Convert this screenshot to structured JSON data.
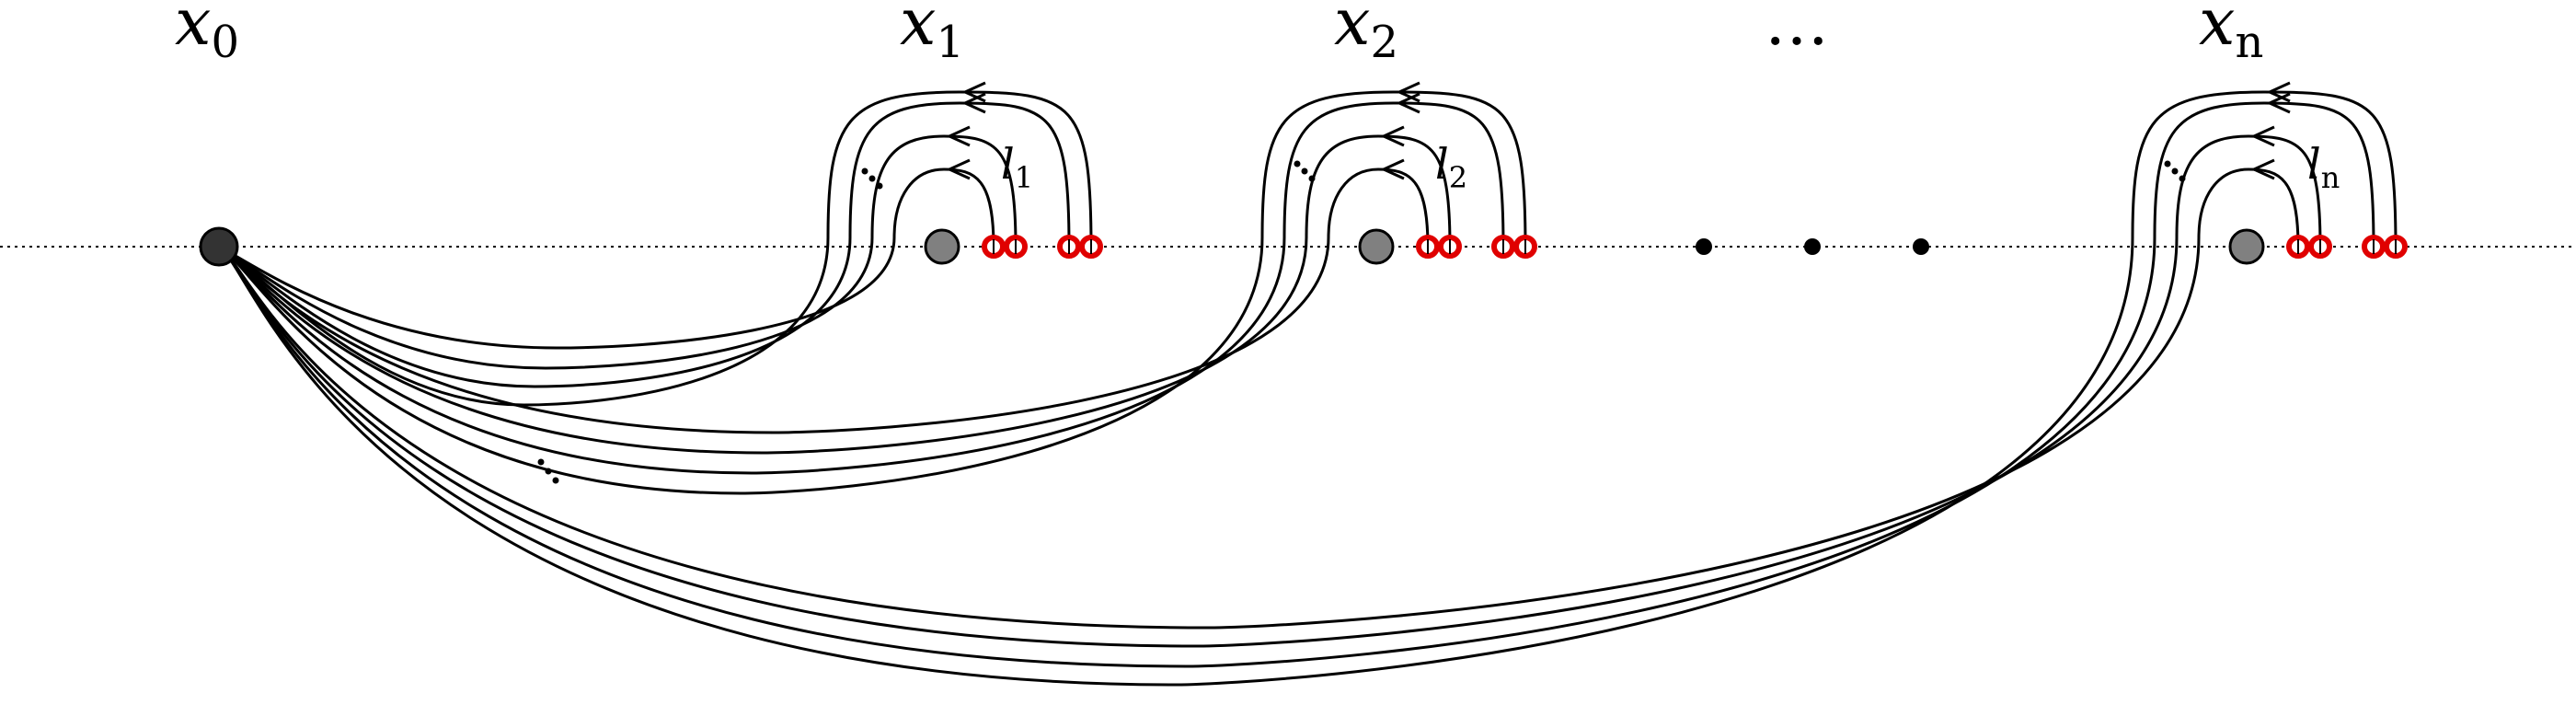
{
  "labels": {
    "x0": {
      "base": "x",
      "sub": "0"
    },
    "x1": {
      "base": "x",
      "sub": "1"
    },
    "x2": {
      "base": "x",
      "sub": "2"
    },
    "xn": {
      "base": "x",
      "sub": "n"
    },
    "top_ellipsis": "…",
    "l1": {
      "base": "l",
      "sub": "1"
    },
    "l2": {
      "base": "l",
      "sub": "2"
    },
    "ln": {
      "base": "l",
      "sub": "n"
    }
  },
  "colors": {
    "basepoint": "#333333",
    "puncture": "#808080",
    "marker": "#e00000",
    "stroke": "#000000"
  },
  "structure": {
    "points_with_loops": [
      "x1",
      "x2",
      "xn"
    ],
    "loops_per_point": 4,
    "markers_per_point": 4,
    "ellipsis_dots_between": 3
  }
}
